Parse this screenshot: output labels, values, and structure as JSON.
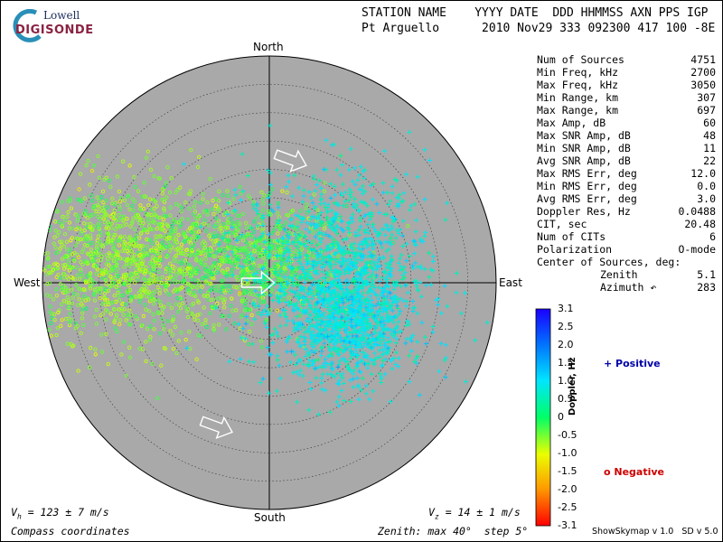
{
  "logo": {
    "line1": "Lowell",
    "line2": "DIGISONDE"
  },
  "header": {
    "label_row": "STATION NAME    YYYY DATE  DDD HHMMSS AXN PPS IGP",
    "value_row": "Pt Arguello      2010 Nov29 333 092300 417 100 -8E"
  },
  "stats": [
    {
      "label": "Num of Sources",
      "value": "4751"
    },
    {
      "label": "Min Freq, kHz",
      "value": "2700"
    },
    {
      "label": "Max Freq, kHz",
      "value": "3050"
    },
    {
      "label": "Min Range, km",
      "value": "307"
    },
    {
      "label": "Max Range, km",
      "value": "697"
    },
    {
      "label": "Max Amp, dB",
      "value": "60"
    },
    {
      "label": "Max SNR Amp, dB",
      "value": "48"
    },
    {
      "label": "Min SNR Amp, dB",
      "value": "11"
    },
    {
      "label": "Avg SNR Amp, dB",
      "value": "22"
    },
    {
      "label": "Max RMS Err, deg",
      "value": "12.0"
    },
    {
      "label": "Min RMS Err, deg",
      "value": "0.0"
    },
    {
      "label": "Avg RMS Err, deg",
      "value": "3.0"
    },
    {
      "label": "Doppler Res, Hz",
      "value": "0.0488"
    },
    {
      "label": "CIT, sec",
      "value": "20.48"
    },
    {
      "label": "Num of CITs",
      "value": "6"
    },
    {
      "label": "Polarization",
      "value": "O-mode"
    },
    {
      "label": "Center of Sources, deg:",
      "value": ""
    },
    {
      "label": "Zenith",
      "value": "5.1"
    },
    {
      "label": "Azimuth ↶",
      "value": "283"
    }
  ],
  "directions": {
    "north": "North",
    "south": "South",
    "east": "East",
    "west": "West"
  },
  "legend": {
    "positive": "+ Positive",
    "negative": "o Negative",
    "positive_color": "#0000aa",
    "negative_color": "#cc0000"
  },
  "colorbar": {
    "title": "Doppler, Hz",
    "ticks": [
      "3.1",
      "2.5",
      "2.0",
      "1.5",
      "1.0",
      "0.5",
      "0",
      "-0.5",
      "-1.0",
      "-1.5",
      "-2.0",
      "-2.5",
      "-3.1"
    ]
  },
  "footer": {
    "vh": "V",
    "vh_sub": "h",
    "vh_rest": " = 123 ± 7 m/s",
    "vz": "V",
    "vz_sub": "z",
    "vz_rest": " = 14 ± 1 m/s",
    "coords": "Compass coordinates",
    "zenith": "Zenith: max 40°  step 5°",
    "version": "ShowSkymap v 1.0   SD v 5.0"
  },
  "chart_data": {
    "type": "scatter",
    "projection": "polar-zenith",
    "zenith_max_deg": 40,
    "zenith_step_deg": 5,
    "background_color": "#a9a9a9",
    "marker_positive": "+",
    "marker_negative": "o",
    "colorbar_range": [
      -3.1,
      3.1
    ],
    "clusters": [
      {
        "name": "negative-west",
        "sign": "negative",
        "center": [
          -25,
          4
        ],
        "spread": [
          11,
          7
        ],
        "count": 1500,
        "doppler": -0.6
      },
      {
        "name": "negative-center",
        "sign": "negative",
        "center": [
          -2,
          4
        ],
        "spread": [
          8,
          5
        ],
        "count": 700,
        "doppler": -0.3
      },
      {
        "name": "positive-east",
        "sign": "positive",
        "center": [
          12,
          2
        ],
        "spread": [
          8,
          9
        ],
        "count": 1200,
        "doppler": 0.8
      },
      {
        "name": "positive-southeast",
        "sign": "positive",
        "center": [
          14,
          -7
        ],
        "spread": [
          5,
          5
        ],
        "count": 800,
        "doppler": 0.9
      }
    ],
    "velocity_arrows": [
      {
        "zenith_deg": 22,
        "azimuth_deg": 10,
        "direction": "west-northwest"
      },
      {
        "zenith_deg": 2,
        "azimuth_deg": 270,
        "direction": "west"
      },
      {
        "zenith_deg": 27,
        "azimuth_deg": 200,
        "direction": "west-northwest"
      }
    ]
  }
}
